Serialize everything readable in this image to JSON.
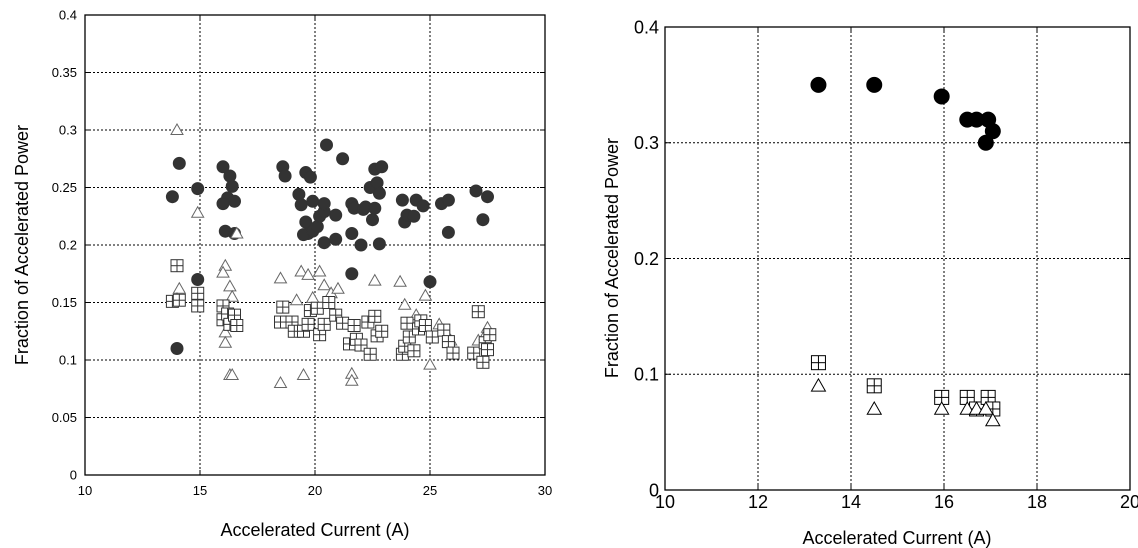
{
  "chart_data": [
    {
      "type": "scatter",
      "title": "",
      "xlabel": "Accelerated  Current  (A)",
      "ylabel": "Fraction of Accelerated Power",
      "xlim": [
        10,
        30
      ],
      "ylim": [
        0,
        0.4
      ],
      "xticks": [
        10,
        15,
        20,
        25,
        30
      ],
      "xtick_labels": [
        "10",
        "15",
        "20",
        "25",
        "30"
      ],
      "yticks": [
        0,
        0.05,
        0.1,
        0.15,
        0.2,
        0.25,
        0.3,
        0.35,
        0.4
      ],
      "ytick_labels": [
        "0",
        "0.05",
        "0.1",
        "0.15",
        "0.2",
        "0.25",
        "0.3",
        "0.35",
        "0.4"
      ],
      "grid": true,
      "series": [
        {
          "marker": "filled-circle",
          "points": [
            [
              13.8,
              0.242
            ],
            [
              14.1,
              0.271
            ],
            [
              14.9,
              0.249
            ],
            [
              14.9,
              0.17
            ],
            [
              14.0,
              0.11
            ],
            [
              16.0,
              0.268
            ],
            [
              16.3,
              0.26
            ],
            [
              16.4,
              0.251
            ],
            [
              16.2,
              0.241
            ],
            [
              16.5,
              0.238
            ],
            [
              16.0,
              0.236
            ],
            [
              16.1,
              0.212
            ],
            [
              16.5,
              0.21
            ],
            [
              18.6,
              0.268
            ],
            [
              18.7,
              0.26
            ],
            [
              19.3,
              0.244
            ],
            [
              19.4,
              0.235
            ],
            [
              19.6,
              0.263
            ],
            [
              19.8,
              0.259
            ],
            [
              19.6,
              0.22
            ],
            [
              19.9,
              0.238
            ],
            [
              19.7,
              0.21
            ],
            [
              19.5,
              0.209
            ],
            [
              19.9,
              0.212
            ],
            [
              20.1,
              0.216
            ],
            [
              20.2,
              0.225
            ],
            [
              20.4,
              0.229
            ],
            [
              20.4,
              0.236
            ],
            [
              20.5,
              0.287
            ],
            [
              20.4,
              0.202
            ],
            [
              20.9,
              0.226
            ],
            [
              21.2,
              0.275
            ],
            [
              20.9,
              0.205
            ],
            [
              21.6,
              0.236
            ],
            [
              21.7,
              0.232
            ],
            [
              21.6,
              0.21
            ],
            [
              21.6,
              0.175
            ],
            [
              22.0,
              0.2
            ],
            [
              22.1,
              0.231
            ],
            [
              22.2,
              0.233
            ],
            [
              22.4,
              0.25
            ],
            [
              22.5,
              0.222
            ],
            [
              22.6,
              0.232
            ],
            [
              22.6,
              0.266
            ],
            [
              22.7,
              0.254
            ],
            [
              22.8,
              0.245
            ],
            [
              22.9,
              0.268
            ],
            [
              22.8,
              0.201
            ],
            [
              23.8,
              0.239
            ],
            [
              23.9,
              0.22
            ],
            [
              24.0,
              0.226
            ],
            [
              24.3,
              0.225
            ],
            [
              24.4,
              0.239
            ],
            [
              24.7,
              0.234
            ],
            [
              25.0,
              0.168
            ],
            [
              25.5,
              0.236
            ],
            [
              25.8,
              0.239
            ],
            [
              25.8,
              0.211
            ],
            [
              27.0,
              0.247
            ],
            [
              27.3,
              0.222
            ],
            [
              27.5,
              0.242
            ]
          ]
        },
        {
          "marker": "open-triangle",
          "points": [
            [
              14.0,
              0.3
            ],
            [
              14.1,
              0.162
            ],
            [
              14.0,
              0.153
            ],
            [
              14.9,
              0.228
            ],
            [
              16.1,
              0.182
            ],
            [
              16.0,
              0.176
            ],
            [
              16.3,
              0.164
            ],
            [
              16.4,
              0.155
            ],
            [
              16.1,
              0.124
            ],
            [
              16.1,
              0.115
            ],
            [
              16.3,
              0.087
            ],
            [
              16.4,
              0.087
            ],
            [
              16.6,
              0.21
            ],
            [
              18.5,
              0.171
            ],
            [
              18.5,
              0.08
            ],
            [
              19.2,
              0.152
            ],
            [
              19.4,
              0.177
            ],
            [
              19.5,
              0.087
            ],
            [
              19.7,
              0.174
            ],
            [
              19.9,
              0.154
            ],
            [
              20.2,
              0.177
            ],
            [
              20.4,
              0.165
            ],
            [
              20.7,
              0.158
            ],
            [
              21.0,
              0.162
            ],
            [
              21.6,
              0.088
            ],
            [
              21.6,
              0.082
            ],
            [
              22.6,
              0.169
            ],
            [
              23.7,
              0.168
            ],
            [
              23.9,
              0.148
            ],
            [
              24.4,
              0.139
            ],
            [
              24.8,
              0.156
            ],
            [
              25.0,
              0.096
            ],
            [
              25.4,
              0.131
            ],
            [
              25.9,
              0.117
            ],
            [
              27.1,
              0.117
            ],
            [
              27.4,
              0.122
            ],
            [
              27.5,
              0.128
            ]
          ]
        },
        {
          "marker": "open-square-plus",
          "points": [
            [
              14.0,
              0.182
            ],
            [
              13.8,
              0.151
            ],
            [
              14.1,
              0.152
            ],
            [
              14.9,
              0.147
            ],
            [
              14.9,
              0.158
            ],
            [
              16.0,
              0.147
            ],
            [
              16.0,
              0.135
            ],
            [
              16.2,
              0.14
            ],
            [
              16.3,
              0.131
            ],
            [
              16.5,
              0.139
            ],
            [
              16.6,
              0.13
            ],
            [
              18.5,
              0.133
            ],
            [
              18.6,
              0.146
            ],
            [
              19.0,
              0.133
            ],
            [
              19.1,
              0.125
            ],
            [
              19.5,
              0.125
            ],
            [
              19.7,
              0.131
            ],
            [
              19.8,
              0.143
            ],
            [
              20.1,
              0.145
            ],
            [
              20.2,
              0.122
            ],
            [
              20.4,
              0.131
            ],
            [
              20.6,
              0.15
            ],
            [
              20.9,
              0.139
            ],
            [
              21.2,
              0.132
            ],
            [
              21.5,
              0.114
            ],
            [
              21.7,
              0.13
            ],
            [
              21.8,
              0.118
            ],
            [
              22.0,
              0.113
            ],
            [
              22.3,
              0.133
            ],
            [
              22.4,
              0.105
            ],
            [
              22.6,
              0.138
            ],
            [
              22.7,
              0.121
            ],
            [
              22.9,
              0.125
            ],
            [
              23.8,
              0.105
            ],
            [
              23.9,
              0.112
            ],
            [
              24.0,
              0.132
            ],
            [
              24.1,
              0.12
            ],
            [
              24.3,
              0.108
            ],
            [
              24.5,
              0.127
            ],
            [
              24.6,
              0.134
            ],
            [
              24.8,
              0.13
            ],
            [
              25.1,
              0.12
            ],
            [
              25.6,
              0.126
            ],
            [
              25.8,
              0.116
            ],
            [
              26.0,
              0.106
            ],
            [
              26.9,
              0.106
            ],
            [
              27.1,
              0.142
            ],
            [
              27.3,
              0.098
            ],
            [
              27.4,
              0.115
            ],
            [
              27.5,
              0.109
            ],
            [
              27.6,
              0.122
            ]
          ]
        }
      ]
    },
    {
      "type": "scatter",
      "title": "",
      "xlabel": "Accelerated Current (A)",
      "ylabel": "Fraction of Accelerated Power",
      "xlim": [
        10,
        20
      ],
      "ylim": [
        0,
        0.4
      ],
      "xticks": [
        10,
        12,
        14,
        16,
        18,
        20
      ],
      "xtick_labels": [
        "10",
        "12",
        "14",
        "16",
        "18",
        "20"
      ],
      "yticks": [
        0,
        0.1,
        0.2,
        0.3,
        0.4
      ],
      "ytick_labels": [
        "0",
        "0.1",
        "0.2",
        "0.3",
        "0.4"
      ],
      "grid": true,
      "series": [
        {
          "marker": "filled-circle",
          "points": [
            [
              13.3,
              0.35
            ],
            [
              14.5,
              0.35
            ],
            [
              15.95,
              0.34
            ],
            [
              16.5,
              0.32
            ],
            [
              16.7,
              0.32
            ],
            [
              16.95,
              0.32
            ],
            [
              17.05,
              0.31
            ],
            [
              16.9,
              0.3
            ]
          ]
        },
        {
          "marker": "open-square-plus",
          "points": [
            [
              13.3,
              0.11
            ],
            [
              14.5,
              0.09
            ],
            [
              15.95,
              0.08
            ],
            [
              16.5,
              0.08
            ],
            [
              16.7,
              0.07
            ],
            [
              16.95,
              0.08
            ],
            [
              17.05,
              0.07
            ]
          ]
        },
        {
          "marker": "open-triangle",
          "points": [
            [
              13.3,
              0.09
            ],
            [
              14.5,
              0.07
            ],
            [
              15.95,
              0.07
            ],
            [
              16.5,
              0.07
            ],
            [
              16.7,
              0.07
            ],
            [
              16.9,
              0.07
            ],
            [
              17.05,
              0.06
            ]
          ]
        }
      ]
    }
  ]
}
